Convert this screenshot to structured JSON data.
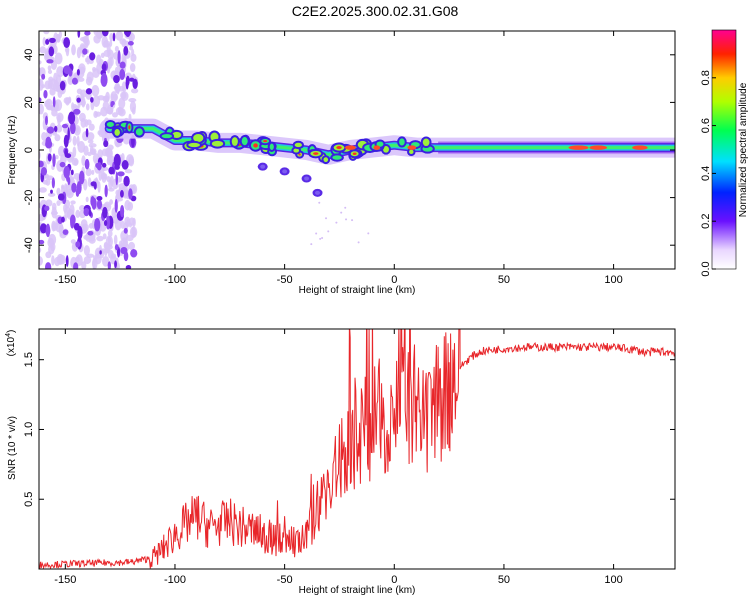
{
  "title": "C2E2.2025.300.02.31.G08",
  "colors": {
    "series": "#e8262a",
    "blob_purple": "#6a1fe0",
    "blob_light": "#d4bdf5"
  },
  "chart_data": [
    {
      "type": "heatmap",
      "title": "C2E2.2025.300.02.31.G08",
      "xlabel": "Height of straight line (km)",
      "ylabel": "Frequency (Hz)",
      "xlim": [
        -162,
        128
      ],
      "ylim": [
        -50,
        50
      ],
      "xticks": [
        -150,
        -100,
        -50,
        0,
        50,
        100
      ],
      "yticks": [
        -40,
        -20,
        0,
        20,
        40
      ],
      "colorbar": {
        "label": "Normalized spectral amplitude",
        "range": [
          0,
          1
        ],
        "ticks": [
          0.0,
          0.2,
          0.4,
          0.6,
          0.8
        ]
      },
      "features": [
        {
          "name": "noise band",
          "x_range": [
            -162,
            -118
          ],
          "y_range": [
            -50,
            50
          ],
          "amplitude": 0.2
        },
        {
          "name": "main ridge",
          "x": [
            -130,
            -110,
            -100,
            -90,
            -80,
            -70,
            -60,
            -50,
            -40,
            -30,
            -20,
            -10,
            0,
            10,
            20,
            50,
            80,
            100,
            128
          ],
          "y": [
            9,
            9,
            4,
            4,
            3,
            3,
            2,
            1,
            0,
            -2,
            0,
            1,
            2,
            1,
            1,
            1,
            1,
            1,
            1
          ]
        },
        {
          "name": "secondary trace",
          "x": [
            -60,
            -50,
            -40,
            -35
          ],
          "y": [
            -7,
            -9,
            -12,
            -18
          ]
        }
      ]
    },
    {
      "type": "line",
      "title": "",
      "xlabel": "Height of straight line (km)",
      "ylabel": "SNR (10 * v/v)",
      "multiplier_label": "(x10",
      "multiplier_exp": "4",
      "xlim": [
        -162,
        128
      ],
      "ylim": [
        0,
        1.72
      ],
      "xticks": [
        -150,
        -100,
        -50,
        0,
        50,
        100
      ],
      "yticks": [
        0.5,
        1.0,
        1.5
      ],
      "series": [
        {
          "name": "SNR",
          "x": [
            -162,
            -140,
            -120,
            -110,
            -105,
            -100,
            -95,
            -90,
            -85,
            -80,
            -75,
            -70,
            -65,
            -60,
            -55,
            -50,
            -45,
            -40,
            -35,
            -30,
            -25,
            -20,
            -15,
            -10,
            -5,
            0,
            5,
            10,
            15,
            20,
            25,
            30,
            35,
            40,
            50,
            60,
            80,
            100,
            110,
            115,
            120,
            128
          ],
          "y": [
            0.03,
            0.04,
            0.05,
            0.08,
            0.15,
            0.25,
            0.32,
            0.38,
            0.3,
            0.32,
            0.34,
            0.3,
            0.28,
            0.25,
            0.2,
            0.25,
            0.18,
            0.22,
            0.45,
            0.6,
            0.75,
            0.9,
            1.0,
            1.05,
            1.1,
            1.15,
            1.2,
            1.05,
            1.0,
            1.2,
            1.35,
            1.45,
            1.52,
            1.56,
            1.58,
            1.59,
            1.59,
            1.59,
            1.57,
            1.55,
            1.56,
            1.55
          ]
        }
      ]
    }
  ]
}
